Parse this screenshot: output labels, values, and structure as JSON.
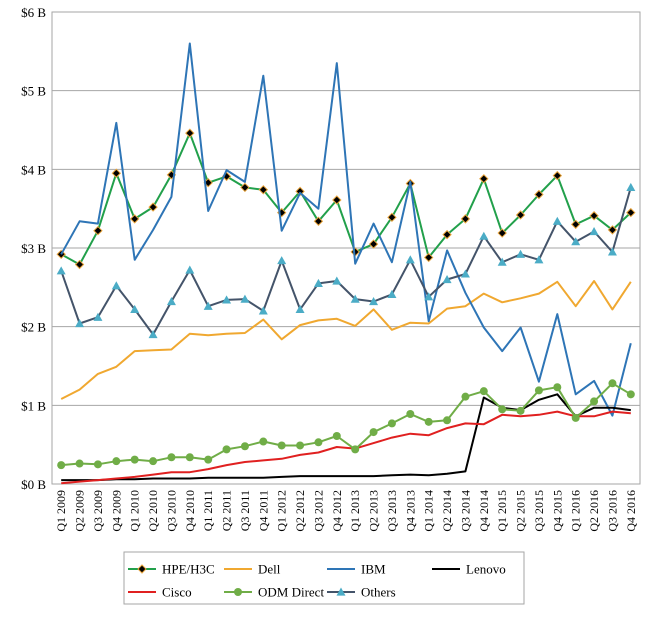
{
  "chart_data": {
    "type": "line",
    "categories": [
      "Q1 2009",
      "Q2 2009",
      "Q3 2009",
      "Q4 2009",
      "Q1 2010",
      "Q2 2010",
      "Q3 2010",
      "Q4 2010",
      "Q1 2011",
      "Q2 2011",
      "Q3 2011",
      "Q4 2011",
      "Q1 2012",
      "Q2 2012",
      "Q3 2012",
      "Q4 2012",
      "Q1 2013",
      "Q2 2013",
      "Q3 2013",
      "Q4 2013",
      "Q1 2014",
      "Q2 2014",
      "Q3 2014",
      "Q4 2014",
      "Q1 2015",
      "Q2 2015",
      "Q3 2015",
      "Q4 2015",
      "Q1 2016",
      "Q2 2016",
      "Q3 2016",
      "Q4 2016"
    ],
    "y_ticks": [
      "$0 B",
      "$1 B",
      "$2 B",
      "$3 B",
      "$4 B",
      "$5 B",
      "$6 B"
    ],
    "ylim": [
      0,
      6
    ],
    "grid": true,
    "legend_position": "bottom",
    "series": [
      {
        "name": "HPE/H3C",
        "color": "#22a04b",
        "marker": "diamond",
        "marker_color": "#000000",
        "marker_edge": "#e8a33a",
        "values": [
          2.92,
          2.79,
          3.22,
          3.95,
          3.37,
          3.52,
          3.93,
          4.46,
          3.83,
          3.91,
          3.77,
          3.74,
          3.45,
          3.72,
          3.34,
          3.61,
          2.95,
          3.05,
          3.39,
          3.82,
          2.88,
          3.17,
          3.37,
          3.88,
          3.19,
          3.42,
          3.68,
          3.92,
          3.3,
          3.41,
          3.23,
          3.45
        ]
      },
      {
        "name": "Dell",
        "color": "#f0a830",
        "marker": "none",
        "values": [
          1.08,
          1.2,
          1.4,
          1.49,
          1.69,
          1.7,
          1.71,
          1.91,
          1.89,
          1.91,
          1.92,
          2.09,
          1.84,
          2.02,
          2.08,
          2.1,
          2.01,
          2.22,
          1.96,
          2.05,
          2.04,
          2.23,
          2.26,
          2.42,
          2.31,
          2.36,
          2.42,
          2.57,
          2.26,
          2.58,
          2.22,
          2.57
        ]
      },
      {
        "name": "IBM",
        "color": "#2e75b6",
        "marker": "none",
        "values": [
          2.92,
          3.34,
          3.31,
          4.59,
          2.85,
          3.23,
          3.65,
          5.6,
          3.47,
          3.99,
          3.84,
          5.19,
          3.22,
          3.7,
          3.5,
          5.35,
          2.8,
          3.31,
          2.82,
          3.84,
          2.07,
          2.97,
          2.43,
          1.99,
          1.69,
          1.99,
          1.3,
          2.16,
          1.14,
          1.31,
          0.87,
          1.79
        ]
      },
      {
        "name": "Lenovo",
        "color": "#000000",
        "marker": "none",
        "values": [
          0.05,
          0.05,
          0.05,
          0.06,
          0.06,
          0.07,
          0.07,
          0.07,
          0.08,
          0.08,
          0.08,
          0.08,
          0.09,
          0.1,
          0.1,
          0.1,
          0.1,
          0.1,
          0.11,
          0.12,
          0.11,
          0.13,
          0.16,
          1.1,
          0.97,
          0.94,
          1.07,
          1.14,
          0.86,
          0.97,
          0.97,
          0.94
        ]
      },
      {
        "name": "Cisco",
        "color": "#e02020",
        "marker": "none",
        "values": [
          0.01,
          0.03,
          0.05,
          0.07,
          0.09,
          0.12,
          0.15,
          0.15,
          0.19,
          0.24,
          0.28,
          0.3,
          0.32,
          0.37,
          0.4,
          0.47,
          0.45,
          0.52,
          0.59,
          0.64,
          0.62,
          0.71,
          0.77,
          0.76,
          0.88,
          0.86,
          0.88,
          0.92,
          0.86,
          0.86,
          0.92,
          0.9
        ]
      },
      {
        "name": "ODM Direct",
        "color": "#70ad47",
        "marker": "circle",
        "marker_color": "#70ad47",
        "values": [
          0.24,
          0.26,
          0.25,
          0.29,
          0.31,
          0.29,
          0.34,
          0.34,
          0.31,
          0.44,
          0.48,
          0.54,
          0.49,
          0.49,
          0.53,
          0.61,
          0.44,
          0.66,
          0.77,
          0.89,
          0.79,
          0.81,
          1.11,
          1.18,
          0.95,
          0.93,
          1.19,
          1.23,
          0.84,
          1.05,
          1.28,
          1.14
        ]
      },
      {
        "name": "Others",
        "color": "#44546a",
        "marker": "triangle",
        "marker_color": "#4bacc6",
        "values": [
          2.71,
          2.04,
          2.12,
          2.52,
          2.22,
          1.9,
          2.32,
          2.72,
          2.26,
          2.34,
          2.35,
          2.2,
          2.84,
          2.22,
          2.55,
          2.58,
          2.35,
          2.32,
          2.41,
          2.85,
          2.38,
          2.6,
          2.67,
          3.15,
          2.82,
          2.92,
          2.85,
          3.34,
          3.08,
          3.21,
          2.95,
          3.77
        ]
      }
    ]
  }
}
